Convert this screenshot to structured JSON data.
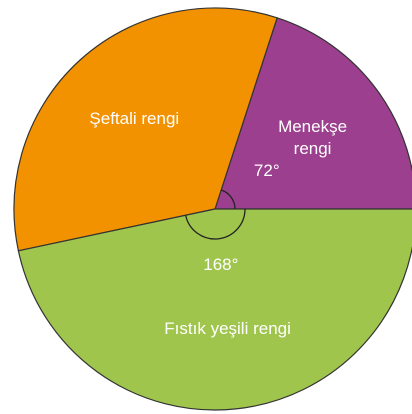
{
  "chart_data": {
    "type": "pie",
    "categories": [
      "Menekşe rengi",
      "Şeftali rengi",
      "Fıstık yeşili rengi"
    ],
    "values": [
      72,
      120,
      168
    ],
    "value_labels": [
      "72°",
      null,
      "168°"
    ],
    "colors": [
      "#9b3f8e",
      "#f39200",
      "#9fc54d"
    ]
  }
}
